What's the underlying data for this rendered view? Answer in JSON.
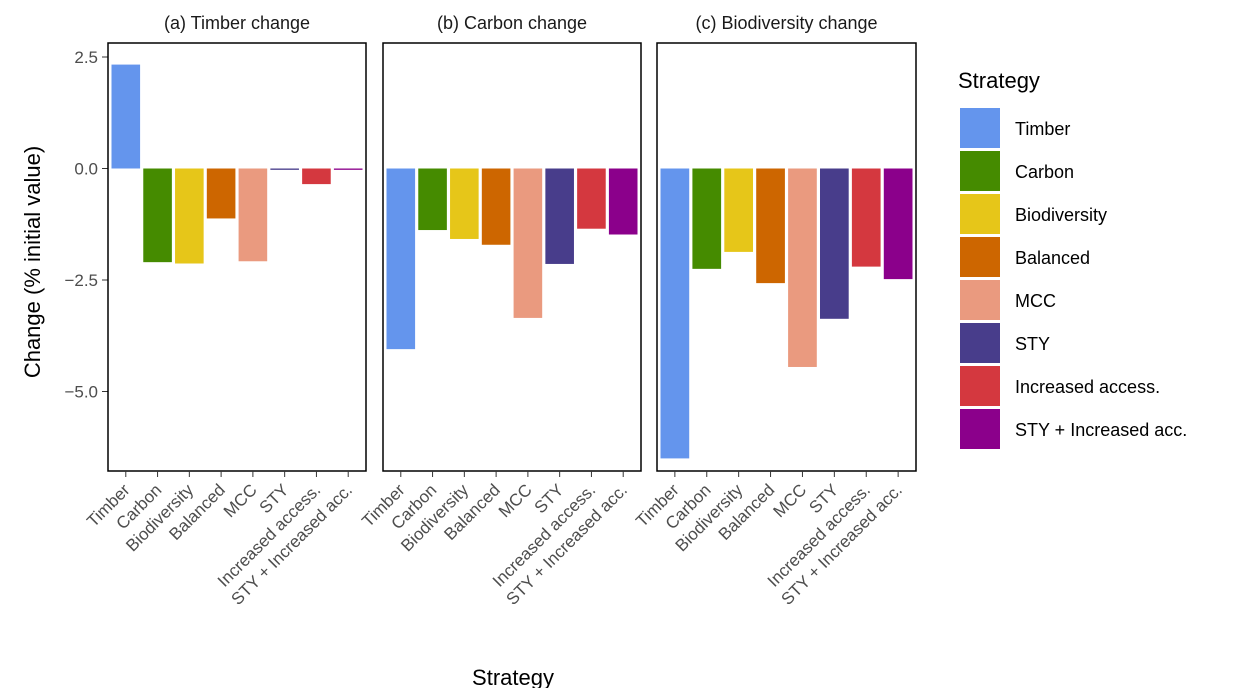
{
  "chart_data": {
    "type": "bar",
    "xlabel": "Strategy",
    "ylabel": "Change (% initial value)",
    "ylim": [
      -6.8,
      2.5
    ],
    "yticks": [
      2.5,
      0.0,
      -2.5,
      -5.0
    ],
    "ytick_labels": [
      "2.5",
      "0.0",
      "−2.5",
      "−5.0"
    ],
    "grid": false,
    "legend_position": "right",
    "categories": [
      "Timber",
      "Carbon",
      "Biodiversity",
      "Balanced",
      "MCC",
      "STY",
      "Increased access.",
      "STY + Increased acc."
    ],
    "panels": [
      {
        "title": "(a) Timber change",
        "values": [
          2.33,
          -2.1,
          -2.13,
          -1.12,
          -2.08,
          -0.03,
          -0.35,
          -0.03
        ]
      },
      {
        "title": "(b) Carbon change",
        "values": [
          -4.05,
          -1.38,
          -1.58,
          -1.71,
          -3.35,
          -2.14,
          -1.35,
          -1.48
        ]
      },
      {
        "title": "(c) Biodiversity change",
        "values": [
          -6.5,
          -2.25,
          -1.87,
          -2.57,
          -4.45,
          -3.37,
          -2.2,
          -2.48
        ]
      }
    ],
    "legend": {
      "title": "Strategy",
      "entries": [
        "Timber",
        "Carbon",
        "Biodiversity",
        "Balanced",
        "MCC",
        "STY",
        "Increased access.",
        "STY + Increased acc."
      ]
    },
    "colors": [
      "#6495ED",
      "#458B00",
      "#E6C619",
      "#CD6600",
      "#EA9A7F",
      "#483D8B",
      "#D4383F",
      "#8B008B"
    ]
  }
}
